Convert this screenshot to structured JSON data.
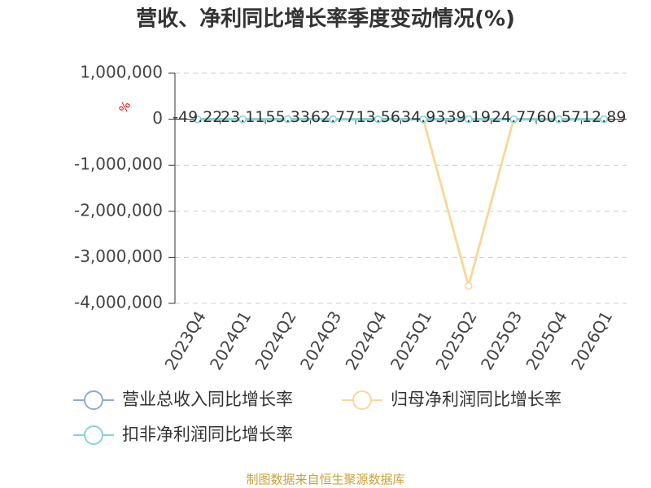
{
  "chart_data": {
    "type": "line",
    "title": "营收、净利同比增长率季度变动情况(%)",
    "y_label": "%",
    "categories": [
      "2023Q4",
      "2024Q1",
      "2024Q2",
      "2024Q3",
      "2024Q4",
      "2025Q1",
      "2025Q2",
      "2025Q3",
      "2025Q4",
      "2026Q1"
    ],
    "series": [
      {
        "name": "营业总收入同比增长率",
        "color": "#8fa9d9",
        "values": [
          0,
          0,
          0,
          0,
          0,
          0,
          0,
          0,
          0,
          0
        ]
      },
      {
        "name": "归母净利润同比增长率",
        "color": "#f8d99b",
        "values": [
          0,
          0,
          0,
          0,
          0,
          0,
          -3620000,
          0,
          0,
          0
        ]
      },
      {
        "name": "扣非净利润同比增长率",
        "color": "#87d3d9",
        "values": [
          -49.22,
          23.11,
          55.33,
          62.77,
          13.56,
          34.93,
          39.19,
          24.77,
          60.57,
          12.89
        ]
      }
    ],
    "ylim": [
      -4000000,
      1000000
    ],
    "yticks": [
      {
        "value": -4000000,
        "label": "-4,000,000"
      },
      {
        "value": -3000000,
        "label": "-3,000,000"
      },
      {
        "value": -2000000,
        "label": "-2,000,000"
      },
      {
        "value": -1000000,
        "label": "-1,000,000"
      },
      0,
      {
        "value": 1000000,
        "label": "1,000,000"
      }
    ],
    "grid": true,
    "footer": "制图数据来自恒生聚源数据库"
  }
}
